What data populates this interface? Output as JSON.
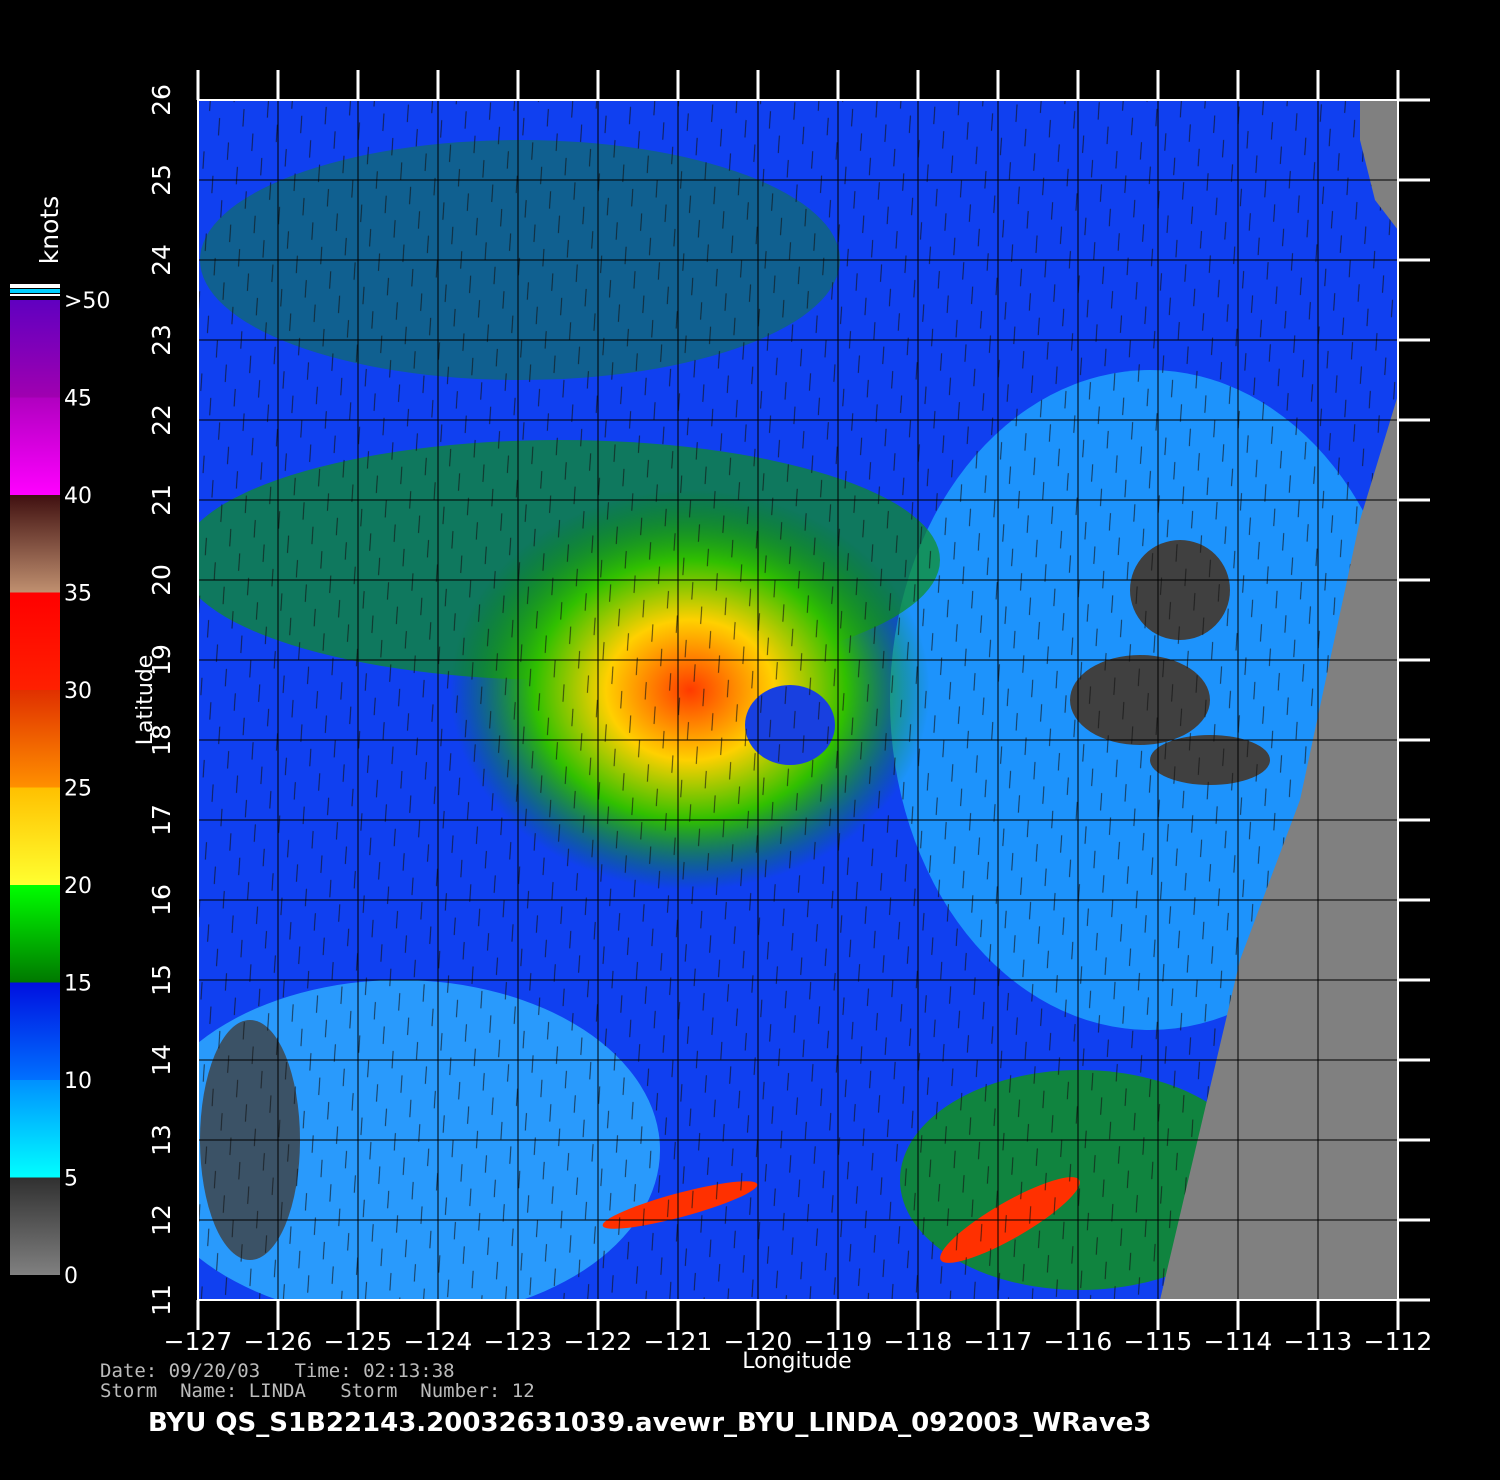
{
  "map": {
    "x_axis": {
      "label": "Longitude",
      "range": [
        -127,
        -112
      ],
      "ticks": [
        {
          "value": -127,
          "label": "−127"
        },
        {
          "value": -126,
          "label": "−126"
        },
        {
          "value": -125,
          "label": "−125"
        },
        {
          "value": -124,
          "label": "−124"
        },
        {
          "value": -123,
          "label": "−123"
        },
        {
          "value": -122,
          "label": "−122"
        },
        {
          "value": -121,
          "label": "−121"
        },
        {
          "value": -120,
          "label": "−120"
        },
        {
          "value": -119,
          "label": "−119"
        },
        {
          "value": -118,
          "label": "−118"
        },
        {
          "value": -117,
          "label": "−117"
        },
        {
          "value": -116,
          "label": "−116"
        },
        {
          "value": -115,
          "label": "−115"
        },
        {
          "value": -114,
          "label": "−114"
        },
        {
          "value": -113,
          "label": "−113"
        },
        {
          "value": -112,
          "label": "−112"
        }
      ]
    },
    "y_axis": {
      "label": "Latitude",
      "range": [
        11,
        26
      ],
      "ticks": [
        11,
        12,
        13,
        14,
        15,
        16,
        17,
        18,
        19,
        20,
        21,
        22,
        23,
        24,
        25,
        26
      ]
    },
    "colorbar": {
      "unit": "knots",
      "range": [
        0,
        50
      ],
      "ticks": [
        0,
        5,
        10,
        15,
        20,
        25,
        30,
        35,
        40,
        45,
        {
          "value": 50,
          "label": ">50"
        }
      ],
      "colors": [
        [
          "#808080",
          "#303030"
        ],
        [
          "#00ffff",
          "#0090ff"
        ],
        [
          "#0070ff",
          "#0010e0"
        ],
        [
          "#007800",
          "#00ff00"
        ],
        [
          "#ffff30",
          "#ffc000"
        ],
        [
          "#ff9000",
          "#e03000"
        ],
        [
          "#ff2000",
          "#ff0000"
        ],
        [
          "#c09070",
          "#401010"
        ],
        [
          "#ff00ff",
          "#b000c0"
        ],
        [
          "#a000b0",
          "#6000c0"
        ]
      ]
    },
    "date_line": "Date: 09/20/03   Time: 02:13:38",
    "storm_line": "Storm  Name: LINDA   Storm  Number: 12",
    "title": "BYU  QS_S1B22143.20032631039.avewr_BYU_LINDA_092003_WRave3"
  }
}
